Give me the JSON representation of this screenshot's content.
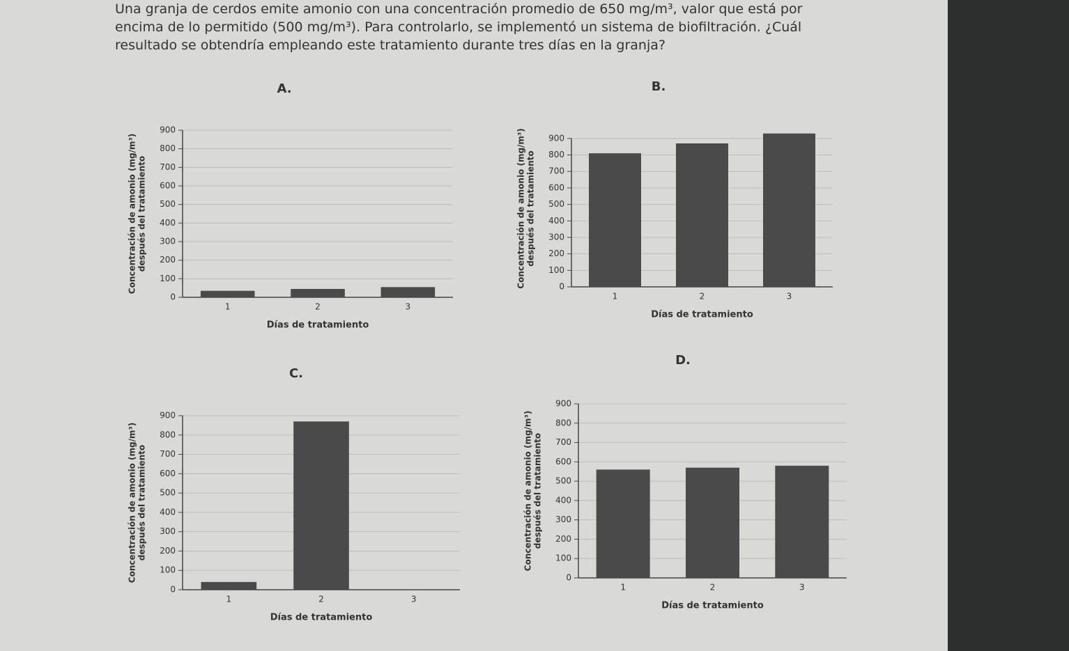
{
  "question": "Una granja de cerdos emite amonio con una concentración promedio de 650 mg/m³, valor que está por encima de lo permitido (500 mg/m³). Para controlarlo, se implementó un sistema de biofiltración. ¿Cuál resultado se obtendría empleando este tratamiento durante tres días en la granja?",
  "chart_data": [
    {
      "type": "bar",
      "title": "A.",
      "xlabel": "Días de tratamiento",
      "ylabel": [
        "Concentración de amonio (mg/m³)",
        "después del tratamiento"
      ],
      "categories": [
        "1",
        "2",
        "3"
      ],
      "values": [
        35,
        45,
        55
      ],
      "color": "#4a4a4a",
      "ylim": [
        0,
        900
      ],
      "yticks": [
        0,
        100,
        200,
        300,
        400,
        500,
        600,
        700,
        800,
        900
      ],
      "grid": true
    },
    {
      "type": "bar",
      "title": "B.",
      "xlabel": "Días de tratamiento",
      "ylabel": [
        "Concentración de amonio (mg/m³)",
        "después del tratamiento"
      ],
      "categories": [
        "1",
        "2",
        "3"
      ],
      "values": [
        810,
        870,
        930
      ],
      "color": "#4a4a4a",
      "ylim": [
        0,
        950
      ],
      "yticks": [
        0,
        100,
        200,
        300,
        400,
        500,
        600,
        700,
        800,
        900
      ],
      "grid": true
    },
    {
      "type": "bar",
      "title": "C.",
      "xlabel": "Días de tratamiento",
      "ylabel": [
        "Concentración de amonio (mg/m³)",
        "después del tratamiento"
      ],
      "categories": [
        "1",
        "2",
        "3"
      ],
      "values": [
        40,
        870,
        0
      ],
      "color": "#4a4a4a",
      "ylim": [
        0,
        900
      ],
      "yticks": [
        0,
        100,
        200,
        300,
        400,
        500,
        600,
        700,
        800,
        900
      ],
      "grid": true
    },
    {
      "type": "bar",
      "title": "D.",
      "xlabel": "Días de tratamiento",
      "ylabel": [
        "Concentración de amonio (mg/m³)",
        "después del tratamiento"
      ],
      "categories": [
        "1",
        "2",
        "3"
      ],
      "values": [
        560,
        570,
        580
      ],
      "color": "#4a4a4a",
      "ylim": [
        0,
        900
      ],
      "yticks": [
        0,
        100,
        200,
        300,
        400,
        500,
        600,
        700,
        800,
        900
      ],
      "grid": true
    }
  ]
}
